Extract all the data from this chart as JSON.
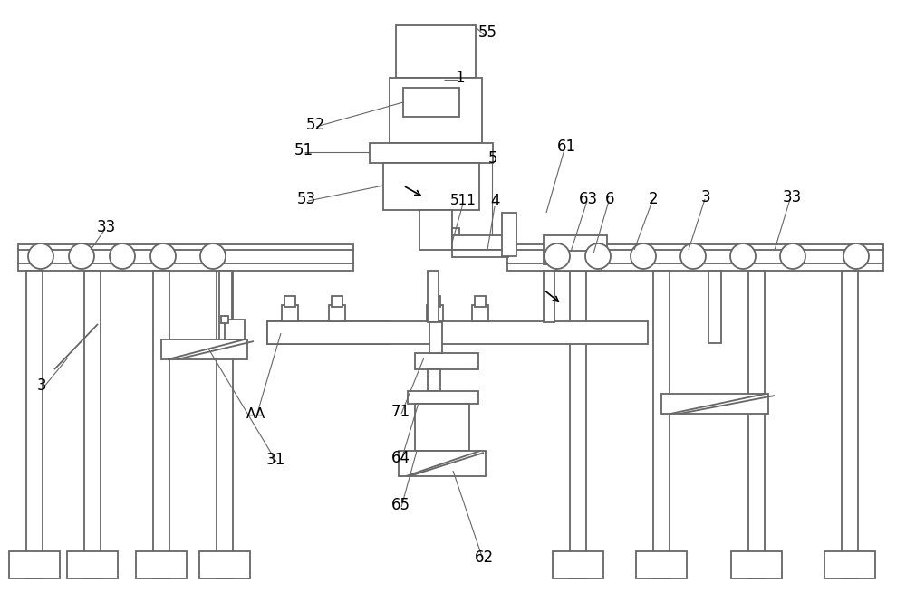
{
  "bg_color": "#ffffff",
  "lc": "#666666",
  "lw": 1.3,
  "thin": 0.8
}
